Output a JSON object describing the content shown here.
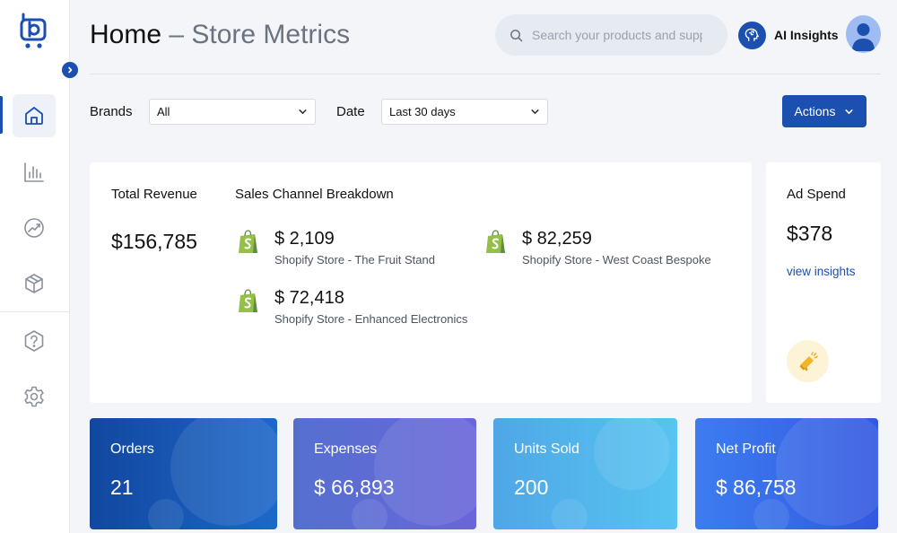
{
  "colors": {
    "primary": "#1b4fb0",
    "shopify_green": "#95bf47",
    "ad_icon_bg": "#fdf3d6"
  },
  "sidebar": {
    "items": [
      {
        "name": "home",
        "icon": "home-icon",
        "active": true
      },
      {
        "name": "analytics",
        "icon": "bar-chart-icon"
      },
      {
        "name": "growth",
        "icon": "trend-gauge-icon"
      },
      {
        "name": "products",
        "icon": "box-icon"
      },
      {
        "name": "help",
        "icon": "help-icon"
      },
      {
        "name": "settings",
        "icon": "gear-icon"
      }
    ]
  },
  "header": {
    "title": "Home",
    "subtitle": " – Store Metrics",
    "search_placeholder": "Search your products and suppliers",
    "ai_label": "AI Insights"
  },
  "filters": {
    "brands_label": "Brands",
    "brands_value": "All",
    "date_label": "Date",
    "date_value": "Last 30 days",
    "actions_label": "Actions"
  },
  "revenue": {
    "label": "Total Revenue",
    "value": "$156,785",
    "breakdown_label": "Sales Channel Breakdown",
    "channels": [
      {
        "amount": "$ 2,109",
        "store": "Shopify Store - The Fruit Stand"
      },
      {
        "amount": "$ 82,259",
        "store": "Shopify Store - West Coast Bespoke"
      },
      {
        "amount": "$ 72,418",
        "store": "Shopify Store - Enhanced Electronics"
      }
    ]
  },
  "ad_spend": {
    "label": "Ad Spend",
    "value": "$378",
    "link": "view insights"
  },
  "metrics": [
    {
      "label": "Orders",
      "value": "21"
    },
    {
      "label": "Expenses",
      "value": "$ 66,893"
    },
    {
      "label": "Units Sold",
      "value": "200"
    },
    {
      "label": "Net Profit",
      "value": "$ 86,758"
    }
  ]
}
